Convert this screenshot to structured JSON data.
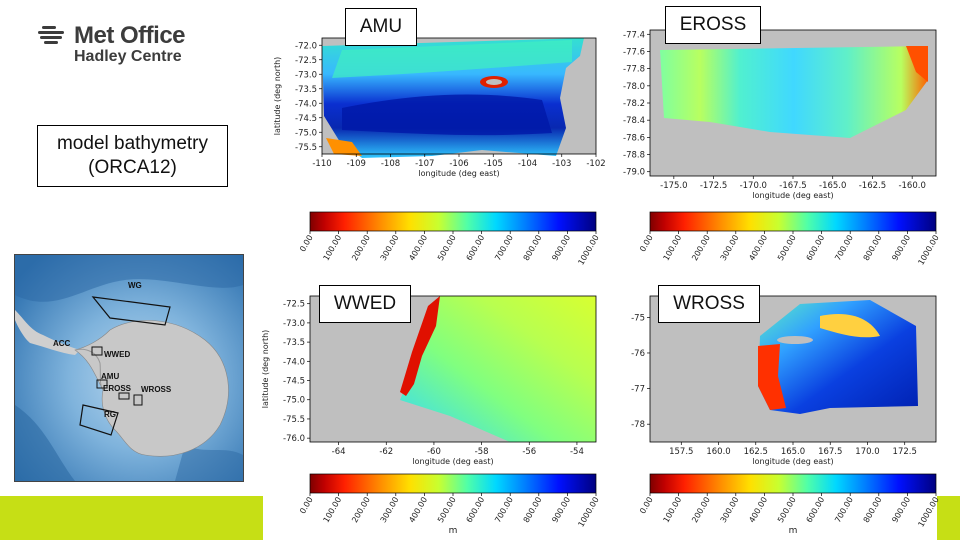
{
  "logo": {
    "line1": "Met Office",
    "line2": "Hadley Centre"
  },
  "description": {
    "line1": "model bathymetry",
    "line2": "(ORCA12)"
  },
  "colors": {
    "land": "#bfbfbf",
    "accent_strip": "#c6df15",
    "ocean_light": "#9cc7e6",
    "ocean_dark": "#1f66a8"
  },
  "colorbar": {
    "ticks": [
      "0.00",
      "100.00",
      "200.00",
      "300.00",
      "400.00",
      "500.00",
      "600.00",
      "700.00",
      "800.00",
      "900.00",
      "1000.00"
    ],
    "unit": "m",
    "colormap": "jet_r"
  },
  "overview_map": {
    "labels": [
      "WG",
      "ACC",
      "WWED",
      "AMU",
      "EROSS",
      "WROSS",
      "RG"
    ]
  },
  "panels": [
    {
      "id": "AMU",
      "title": "AMU",
      "xlabel": "longitude (deg east)",
      "ylabel": "latitude (deg north)",
      "xticks": [
        "-110",
        "-109",
        "-108",
        "-107",
        "-106",
        "-105",
        "-104",
        "-103",
        "-102"
      ],
      "yticks": [
        "-72.0",
        "-72.5",
        "-73.0",
        "-73.5",
        "-74.0",
        "-74.5",
        "-75.0",
        "-75.5"
      ],
      "unit": ""
    },
    {
      "id": "EROSS",
      "title": "EROSS",
      "xlabel": "longitude (deg east)",
      "ylabel": "",
      "xticks": [
        "-175.0",
        "-172.5",
        "-170.0",
        "-167.5",
        "-165.0",
        "-162.5",
        "-160.0"
      ],
      "yticks": [
        "-77.4",
        "-77.6",
        "-77.8",
        "-78.0",
        "-78.2",
        "-78.4",
        "-78.6",
        "-78.8",
        "-79.0"
      ],
      "unit": ""
    },
    {
      "id": "WWED",
      "title": "WWED",
      "xlabel": "longitude (deg east)",
      "ylabel": "latitude (deg north)",
      "xticks": [
        "-64",
        "-62",
        "-60",
        "-58",
        "-56",
        "-54"
      ],
      "yticks": [
        "-72.5",
        "-73.0",
        "-73.5",
        "-74.0",
        "-74.5",
        "-75.0",
        "-75.5",
        "-76.0"
      ],
      "unit": "m"
    },
    {
      "id": "WROSS",
      "title": "WROSS",
      "xlabel": "longitude (deg east)",
      "ylabel": "",
      "xticks": [
        "157.5",
        "160.0",
        "162.5",
        "165.0",
        "167.5",
        "170.0",
        "172.5"
      ],
      "yticks": [
        "-75",
        "-76",
        "-77",
        "-78"
      ],
      "unit": "m"
    }
  ],
  "chart_data": [
    {
      "type": "heatmap",
      "title": "AMU",
      "xlabel": "longitude (deg east)",
      "ylabel": "latitude (deg north)",
      "xlim": [
        -110,
        -102
      ],
      "ylim": [
        -75.75,
        -71.75
      ],
      "value_range": [
        0,
        1000
      ],
      "value_unit": "m"
    },
    {
      "type": "heatmap",
      "title": "EROSS",
      "xlabel": "longitude (deg east)",
      "ylabel": "",
      "xlim": [
        -176.5,
        -158.5
      ],
      "ylim": [
        -79.05,
        -77.35
      ],
      "value_range": [
        0,
        1000
      ],
      "value_unit": "m"
    },
    {
      "type": "heatmap",
      "title": "WWED",
      "xlabel": "longitude (deg east)",
      "ylabel": "latitude (deg north)",
      "xlim": [
        -65.2,
        -53.2
      ],
      "ylim": [
        -76.1,
        -72.3
      ],
      "value_range": [
        0,
        1000
      ],
      "value_unit": "m"
    },
    {
      "type": "heatmap",
      "title": "WROSS",
      "xlabel": "longitude (deg east)",
      "ylabel": "",
      "xlim": [
        155.4,
        174.6
      ],
      "ylim": [
        -78.5,
        -74.4
      ],
      "value_range": [
        0,
        1000
      ],
      "value_unit": "m"
    }
  ]
}
